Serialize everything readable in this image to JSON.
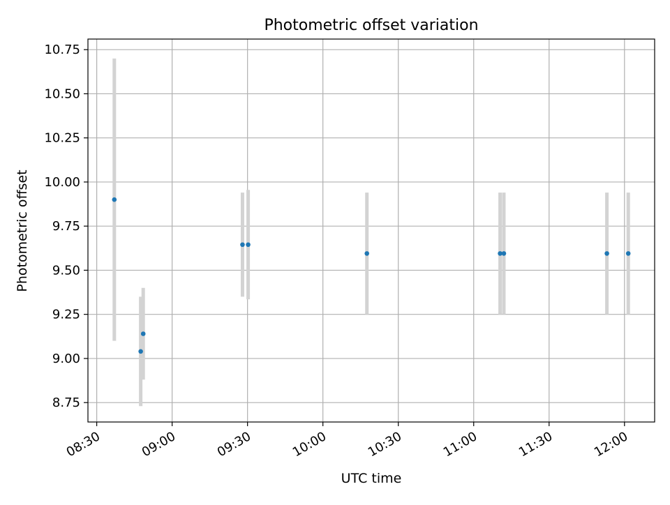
{
  "chart_data": {
    "type": "scatter",
    "title": "Photometric offset variation",
    "xlabel": "UTC time",
    "ylabel": "Photometric offset",
    "x_ticks": [
      "08:30",
      "09:00",
      "09:30",
      "10:00",
      "10:30",
      "11:00",
      "11:30",
      "12:00"
    ],
    "y_ticks": [
      "8.75",
      "9.00",
      "9.25",
      "9.50",
      "9.75",
      "10.00",
      "10.25",
      "10.50",
      "10.75"
    ],
    "xlim": [
      "08:26:30",
      "12:12:00"
    ],
    "ylim": [
      8.64,
      10.81
    ],
    "grid": true,
    "marker_color": "#1f77b4",
    "errorbar_color": "#d3d3d3",
    "points": [
      {
        "time": "08:37:00",
        "y": 9.9,
        "err": 0.8
      },
      {
        "time": "08:47:30",
        "y": 9.04,
        "err": 0.31
      },
      {
        "time": "08:48:30",
        "y": 9.14,
        "err": 0.26
      },
      {
        "time": "09:28:00",
        "y": 9.645,
        "err": 0.295
      },
      {
        "time": "09:30:15",
        "y": 9.645,
        "err": 0.31
      },
      {
        "time": "10:17:30",
        "y": 9.595,
        "err": 0.345
      },
      {
        "time": "11:10:30",
        "y": 9.595,
        "err": 0.345
      },
      {
        "time": "11:12:00",
        "y": 9.595,
        "err": 0.345
      },
      {
        "time": "11:53:00",
        "y": 9.595,
        "err": 0.345
      },
      {
        "time": "12:01:30",
        "y": 9.595,
        "err": 0.345
      }
    ]
  }
}
